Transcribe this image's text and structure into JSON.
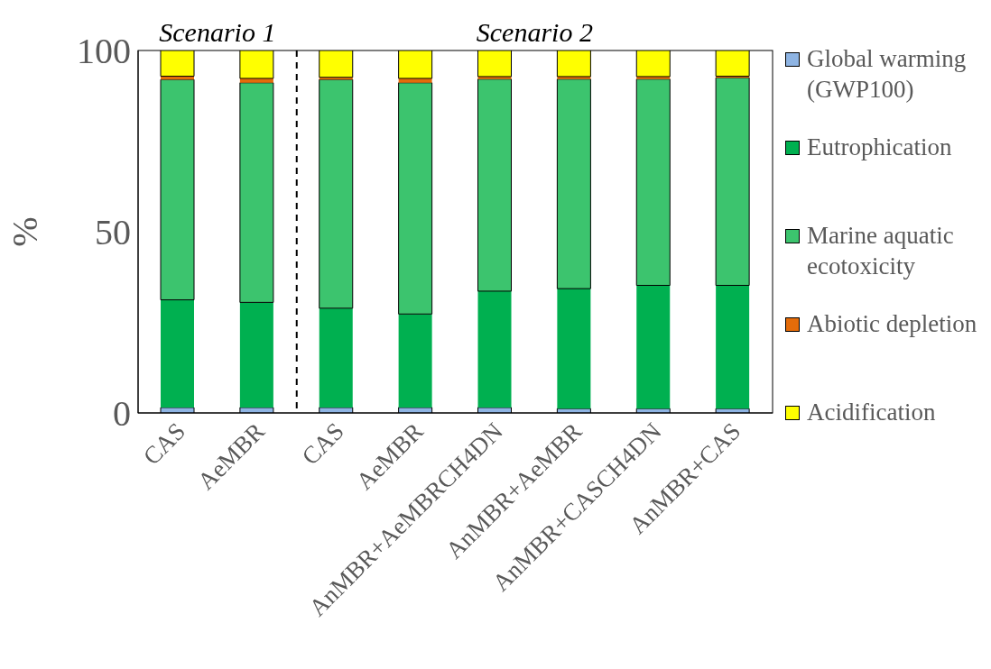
{
  "chart_data": {
    "type": "bar",
    "stacked": true,
    "ylabel": "%",
    "categories": [
      "CAS",
      "AeMBR",
      "CAS",
      "AeMBR",
      "AnMBR+AeMBRCH4DN",
      "AnMBR+AeMBR",
      "AnMBR+CASCH4DN",
      "AnMBR+CAS"
    ],
    "series": [
      {
        "name": "Global warming (GWP100)",
        "color": "#8eb4e3",
        "values": [
          1.5,
          1.5,
          1.5,
          1.5,
          1.5,
          1.2,
          1.2,
          1.2
        ]
      },
      {
        "name": "Eutrophication",
        "color": "#00b050",
        "values": [
          29.7,
          29.0,
          27.4,
          25.8,
          32.1,
          33.1,
          34.0,
          34.0
        ]
      },
      {
        "name": "Marine aquatic ecotoxicity",
        "color": "#3cc46e",
        "values": [
          60.8,
          60.6,
          63.1,
          63.8,
          58.5,
          57.8,
          56.9,
          57.3
        ]
      },
      {
        "name": "Abiotic depletion",
        "color": "#e46c0a",
        "values": [
          0.9,
          1.2,
          0.6,
          1.2,
          0.7,
          0.7,
          0.7,
          0.4
        ]
      },
      {
        "name": "Acidification",
        "color": "#ffff00",
        "values": [
          7.1,
          7.7,
          7.4,
          7.7,
          7.2,
          7.2,
          7.2,
          7.1
        ]
      }
    ],
    "ylim": [
      0,
      100
    ],
    "yticks": [
      0,
      50,
      100
    ],
    "legend": "right",
    "annotations": [
      "Scenario 1",
      "Scenario 2"
    ]
  }
}
